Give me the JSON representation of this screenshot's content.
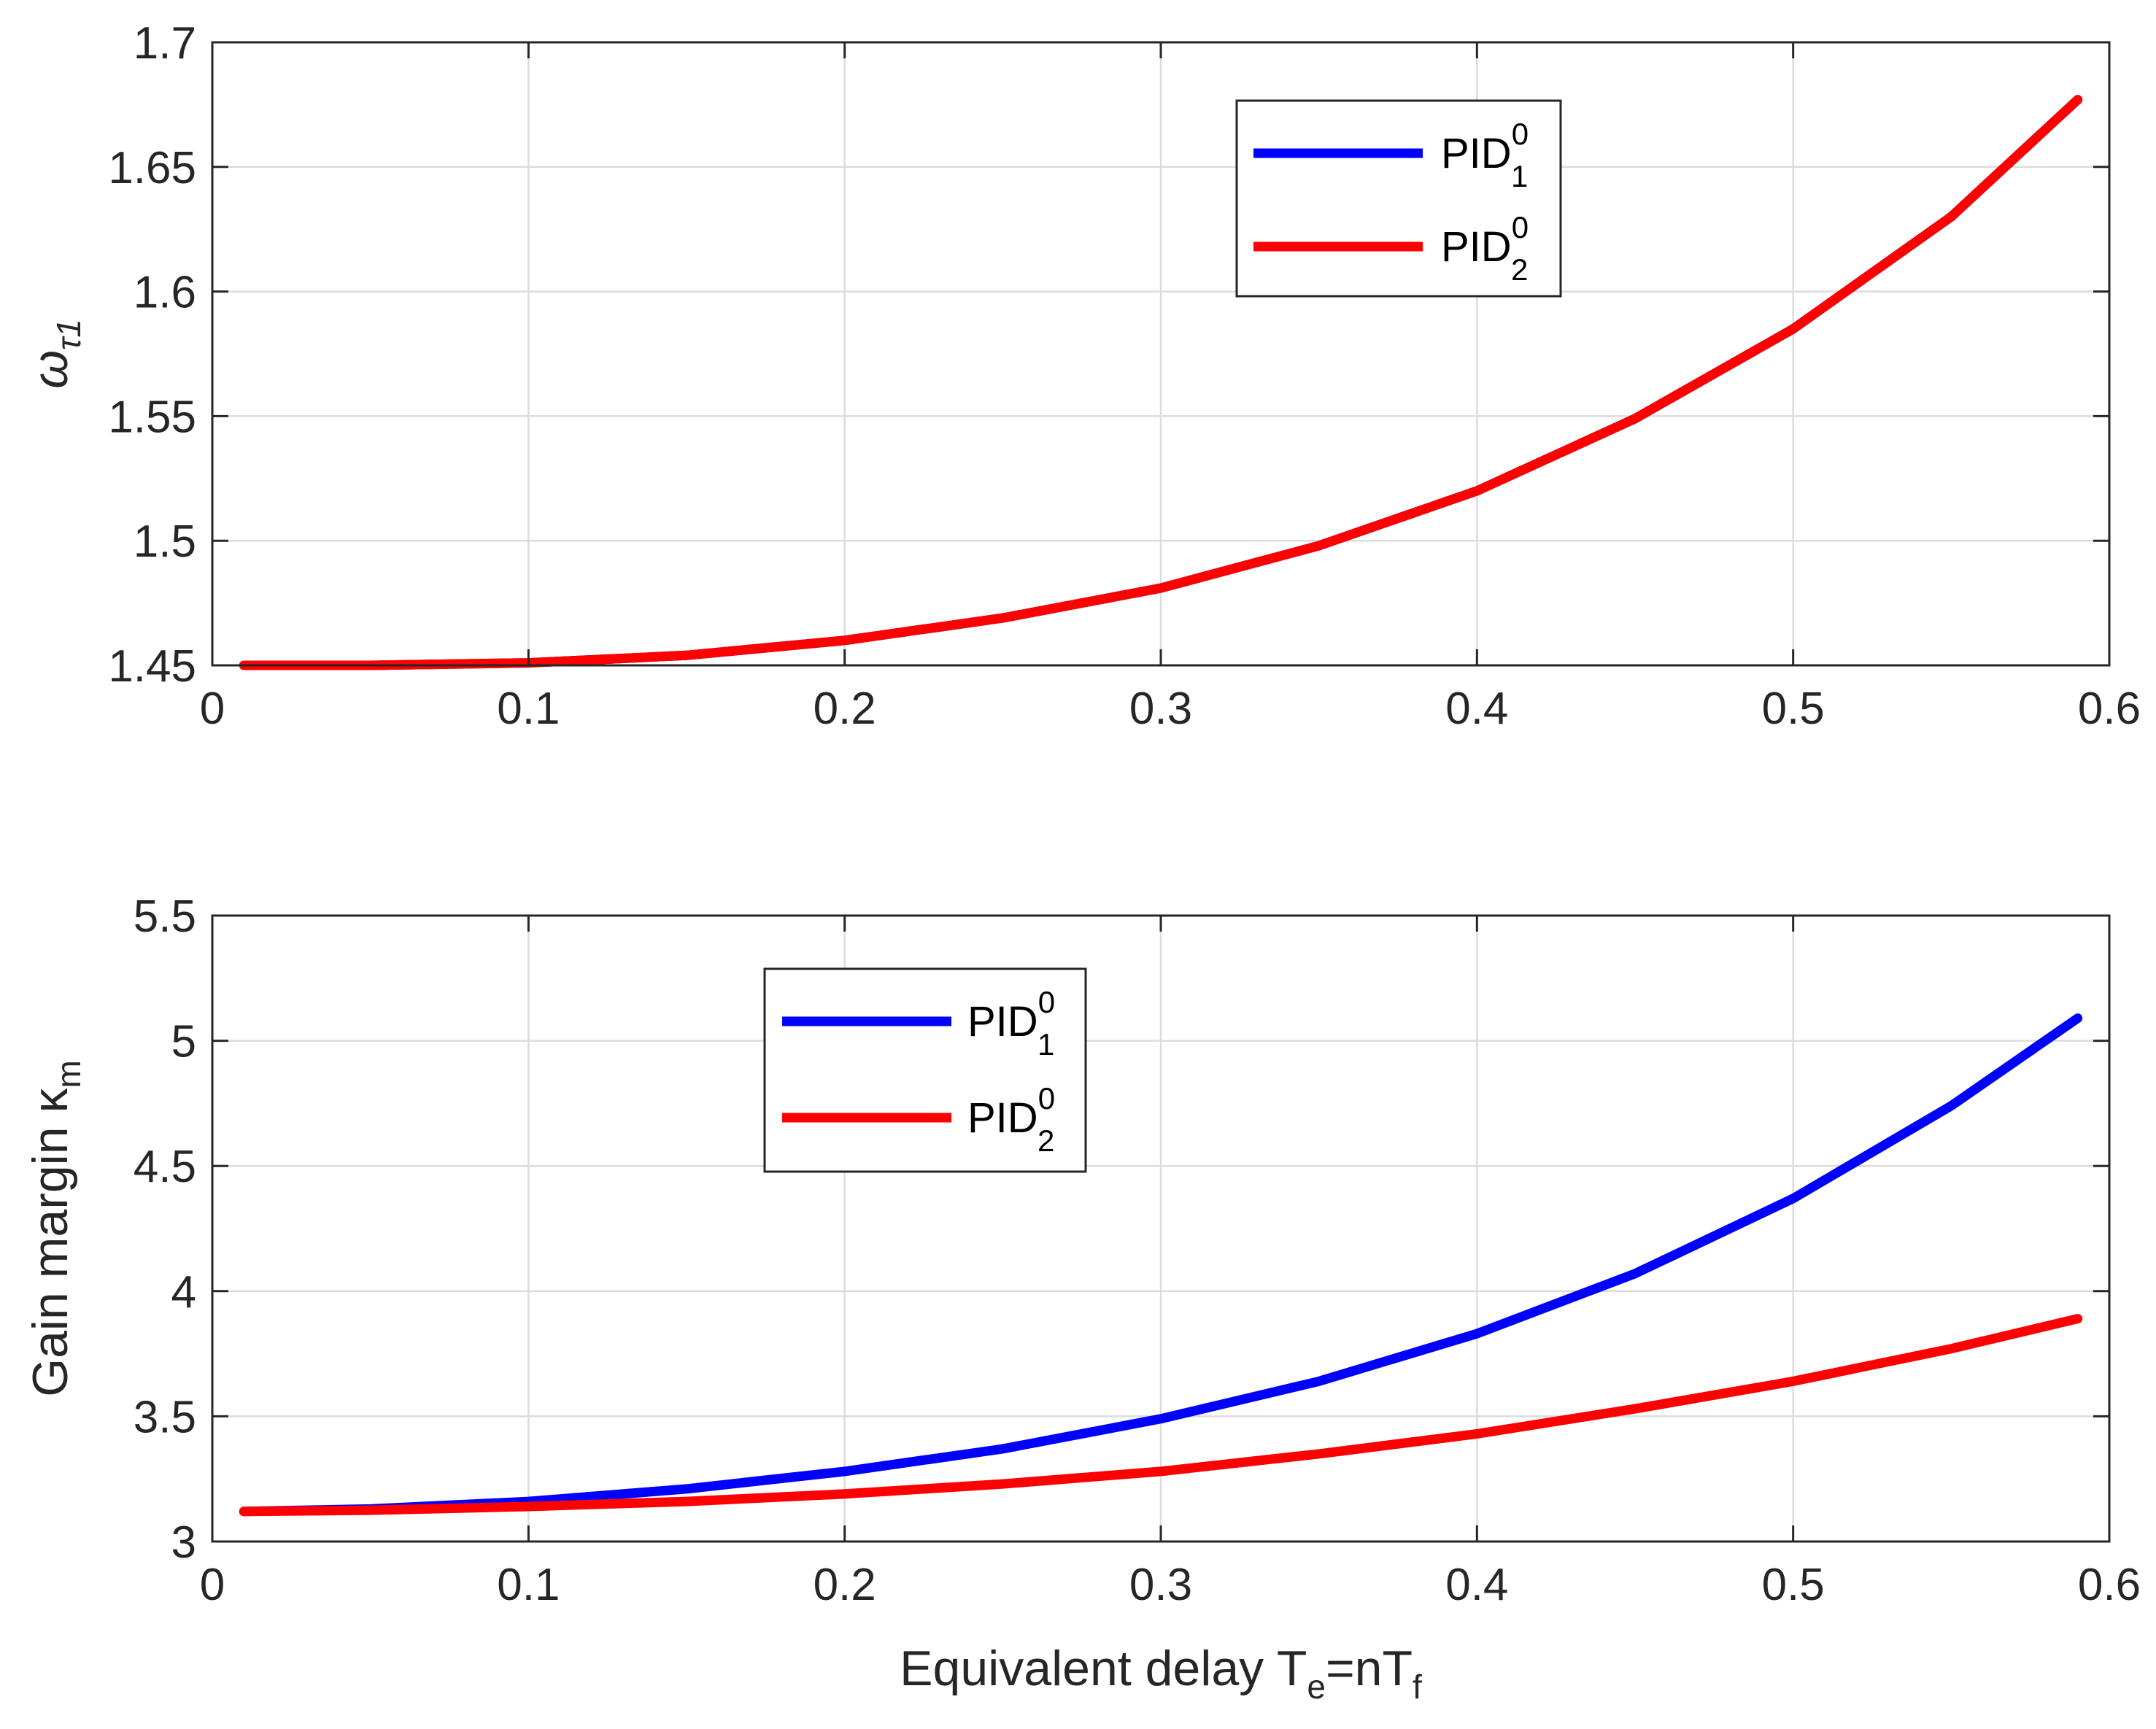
{
  "figure": {
    "xlabel_main": "Equivalent delay T",
    "xlabel_sub1": "e",
    "xlabel_mid": "=nT",
    "xlabel_sub2": "f"
  },
  "chart_data": [
    {
      "type": "line",
      "ylabel_symbol": "ω",
      "ylabel_sub": "τ1",
      "xlim": [
        0,
        0.6
      ],
      "ylim": [
        1.45,
        1.7
      ],
      "xticks": [
        "0",
        "0.1",
        "0.2",
        "0.3",
        "0.4",
        "0.5",
        "0.6"
      ],
      "yticks": [
        "1.45",
        "1.5",
        "1.55",
        "1.6",
        "1.65",
        "1.7"
      ],
      "grid": true,
      "legend_position": "top-right",
      "x": [
        0.01,
        0.05,
        0.1,
        0.15,
        0.2,
        0.25,
        0.3,
        0.35,
        0.4,
        0.45,
        0.5,
        0.55,
        0.59
      ],
      "series": [
        {
          "name": "PID",
          "sup": "0",
          "sub": "1",
          "color": "#0000ff",
          "values": [
            1.45,
            1.45,
            1.451,
            1.454,
            1.46,
            1.469,
            1.481,
            1.498,
            1.52,
            1.549,
            1.585,
            1.63,
            1.677
          ]
        },
        {
          "name": "PID",
          "sup": "0",
          "sub": "2",
          "color": "#ff0000",
          "values": [
            1.45,
            1.45,
            1.451,
            1.454,
            1.46,
            1.469,
            1.481,
            1.498,
            1.52,
            1.549,
            1.585,
            1.63,
            1.677
          ]
        }
      ]
    },
    {
      "type": "line",
      "ylabel_text": "Gain margin κ",
      "ylabel_sub": "m",
      "xlim": [
        0,
        0.6
      ],
      "ylim": [
        3,
        5.5
      ],
      "xticks": [
        "0",
        "0.1",
        "0.2",
        "0.3",
        "0.4",
        "0.5",
        "0.6"
      ],
      "yticks": [
        "3",
        "3.5",
        "4",
        "4.5",
        "5",
        "5.5"
      ],
      "grid": true,
      "legend_position": "top-center",
      "x": [
        0.01,
        0.05,
        0.1,
        0.15,
        0.2,
        0.25,
        0.3,
        0.35,
        0.4,
        0.45,
        0.5,
        0.55,
        0.59
      ],
      "series": [
        {
          "name": "PID",
          "sup": "0",
          "sub": "1",
          "color": "#0000ff",
          "values": [
            3.12,
            3.13,
            3.16,
            3.21,
            3.28,
            3.37,
            3.49,
            3.64,
            3.83,
            4.07,
            4.37,
            4.74,
            5.09
          ]
        },
        {
          "name": "PID",
          "sup": "0",
          "sub": "2",
          "color": "#ff0000",
          "values": [
            3.12,
            3.125,
            3.14,
            3.16,
            3.19,
            3.23,
            3.28,
            3.35,
            3.43,
            3.53,
            3.64,
            3.77,
            3.89
          ]
        }
      ]
    }
  ]
}
